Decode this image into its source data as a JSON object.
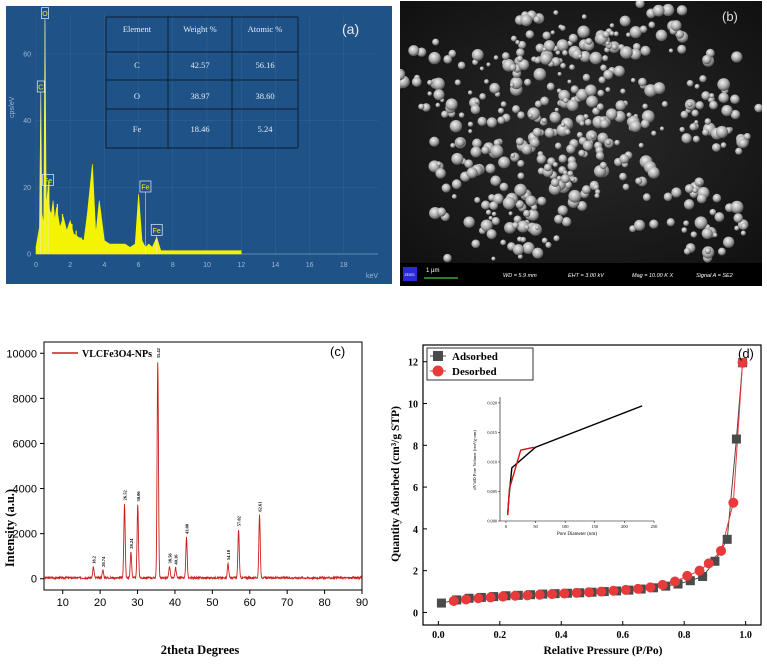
{
  "panel_a": {
    "label": "(a)",
    "y_unit": "cps/eV",
    "x_unit": "keV",
    "peak_labels": [
      "O",
      "C",
      "Fe",
      "Fe",
      "Fe"
    ],
    "table": {
      "headers": [
        "Element",
        "Weight %",
        "Atomic %"
      ],
      "rows": [
        [
          "C",
          "42.57",
          "56.16"
        ],
        [
          "O",
          "38.97",
          "38.60"
        ],
        [
          "Fe",
          "18.46",
          "5.24"
        ]
      ]
    }
  },
  "panel_b": {
    "label": "(b)",
    "scale": "1 µm",
    "logo": "ZEISS",
    "wd": "WD =  5.9 mm",
    "eht": "EHT =  3.00 kV",
    "mag": "Mag =  10.00 K X",
    "signal": "Signal A = SE2"
  },
  "panel_c": {
    "label": "(c)"
  },
  "panel_d": {
    "label": "(d)"
  },
  "colors": {
    "eds_bg": "#1f5286",
    "eds_spectrum": "#f4f400",
    "xrd_line": "#cc1f1f",
    "adsorbed": "#4a4a4a",
    "desorbed": "#e83a3a",
    "inset_black": "#000000",
    "inset_red": "#d01515"
  },
  "chart_data": [
    {
      "type": "line",
      "ylabel": "cps/eV",
      "xlabel": "keV",
      "xlim": [
        0,
        20
      ],
      "ylim": [
        0,
        72
      ],
      "xticks": [
        0,
        2,
        4,
        6,
        8,
        10,
        12,
        14,
        16,
        18
      ],
      "yticks": [
        0,
        20,
        40,
        60
      ],
      "series": [
        {
          "x": [
            0.0,
            0.1,
            0.2,
            0.28,
            0.35,
            0.45,
            0.525,
            0.6,
            0.705,
            0.8,
            0.9,
            1.0,
            1.1,
            1.2,
            1.4,
            1.6,
            1.8,
            2.0,
            2.2,
            2.5,
            2.8,
            3.0,
            3.3,
            3.5,
            3.7,
            4.0,
            4.3,
            4.6,
            4.8,
            5.0,
            5.2,
            5.5,
            5.8,
            6.0,
            6.2,
            6.4,
            6.6,
            6.8,
            7.06,
            7.3,
            7.6,
            8.0,
            9.0,
            10.0,
            11.0,
            12.0
          ],
          "y": [
            2,
            5,
            8,
            48,
            12,
            9,
            70,
            14,
            20,
            13,
            12,
            16,
            10,
            14,
            8,
            11,
            7,
            10,
            6,
            5,
            4,
            12,
            27,
            6,
            16,
            4,
            3,
            3,
            3,
            3,
            3,
            2,
            3,
            18,
            4,
            2,
            3,
            2,
            5,
            1,
            1,
            1,
            1,
            1,
            1,
            1
          ]
        }
      ]
    },
    {
      "type": "line",
      "title": "",
      "xlabel": "2theta Degrees",
      "ylabel": "Intensity (a.u.)",
      "xlim": [
        5,
        90
      ],
      "ylim": [
        -500,
        10500
      ],
      "xticks": [
        10,
        20,
        30,
        40,
        50,
        60,
        70,
        80,
        90
      ],
      "yticks": [
        0,
        2000,
        4000,
        6000,
        8000,
        10000
      ],
      "series": [
        {
          "name": "VLCFe3O4-NPs",
          "peaks": [
            {
              "x": 18.2,
              "y": 480
            },
            {
              "x": 20.74,
              "y": 350
            },
            {
              "x": 26.52,
              "y": 3300
            },
            {
              "x": 28.24,
              "y": 1150
            },
            {
              "x": 30.06,
              "y": 3250
            },
            {
              "x": 35.42,
              "y": 9600
            },
            {
              "x": 38.56,
              "y": 500
            },
            {
              "x": 40.16,
              "y": 450
            },
            {
              "x": 43.08,
              "y": 1800
            },
            {
              "x": 54.18,
              "y": 650
            },
            {
              "x": 57.02,
              "y": 2150
            },
            {
              "x": 62.61,
              "y": 2800
            }
          ]
        }
      ],
      "peak_labels": [
        "18.2",
        "20.74",
        "26.52",
        "28.24",
        "30.06",
        "35.42",
        "38.56",
        "40.16",
        "43.08",
        "54.18",
        "57.02",
        "62.61"
      ]
    },
    {
      "type": "scatter",
      "xlabel": "Relative Pressure (P/Po)",
      "ylabel": "Quantity Adsorbed (cm³/g STP)",
      "xlim": [
        -0.05,
        1.05
      ],
      "ylim": [
        -0.6,
        12.8
      ],
      "xticks": [
        0.0,
        0.2,
        0.4,
        0.6,
        0.8,
        1.0
      ],
      "yticks": [
        0,
        2,
        4,
        6,
        8,
        10,
        12
      ],
      "legend": "top-left",
      "series": [
        {
          "name": "Adsorbed",
          "x": [
            0.01,
            0.06,
            0.1,
            0.14,
            0.18,
            0.22,
            0.26,
            0.3,
            0.34,
            0.38,
            0.42,
            0.46,
            0.5,
            0.54,
            0.58,
            0.62,
            0.66,
            0.7,
            0.74,
            0.78,
            0.82,
            0.86,
            0.9,
            0.94,
            0.97,
            0.99
          ],
          "y": [
            0.45,
            0.6,
            0.68,
            0.72,
            0.76,
            0.8,
            0.82,
            0.85,
            0.88,
            0.9,
            0.92,
            0.94,
            0.97,
            1.0,
            1.03,
            1.07,
            1.12,
            1.18,
            1.26,
            1.36,
            1.52,
            1.72,
            2.45,
            3.5,
            8.3,
            11.95
          ]
        },
        {
          "name": "Desorbed",
          "x": [
            0.05,
            0.09,
            0.13,
            0.17,
            0.21,
            0.25,
            0.29,
            0.33,
            0.37,
            0.41,
            0.45,
            0.49,
            0.53,
            0.57,
            0.61,
            0.65,
            0.69,
            0.73,
            0.77,
            0.81,
            0.85,
            0.88,
            0.92,
            0.96,
            0.99
          ],
          "y": [
            0.55,
            0.62,
            0.68,
            0.72,
            0.76,
            0.8,
            0.82,
            0.85,
            0.88,
            0.91,
            0.94,
            0.97,
            1.0,
            1.04,
            1.08,
            1.13,
            1.2,
            1.32,
            1.48,
            1.75,
            2.0,
            2.35,
            2.95,
            5.25,
            11.95
          ]
        }
      ]
    },
    {
      "type": "line",
      "xlabel": "Pore Diameter (nm)",
      "ylabel": "dV/dD Pore Volume (cm³/g·nm)",
      "xlim": [
        -10,
        250
      ],
      "ylim": [
        0.0,
        0.021
      ],
      "xticks": [
        0,
        50,
        100,
        150,
        200,
        250
      ],
      "yticks": [
        0.0,
        0.005,
        0.01,
        0.015,
        0.02
      ],
      "series": [
        {
          "name": "black",
          "x": [
            3,
            5,
            10,
            50,
            230
          ],
          "y": [
            0.001,
            0.004,
            0.009,
            0.0125,
            0.0195
          ]
        },
        {
          "name": "red",
          "x": [
            3,
            6,
            25,
            48
          ],
          "y": [
            0.001,
            0.0055,
            0.012,
            0.0125
          ]
        }
      ]
    }
  ]
}
